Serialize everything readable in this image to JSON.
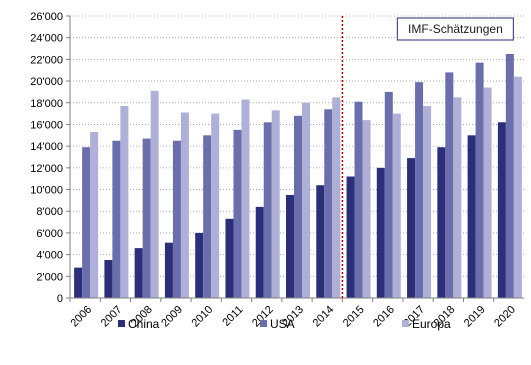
{
  "chart_data": {
    "type": "bar",
    "categories": [
      "2006",
      "2007",
      "2008",
      "2009",
      "2010",
      "2011",
      "2012",
      "2013",
      "2014",
      "2015",
      "2016",
      "2017",
      "2018",
      "2019",
      "2020"
    ],
    "series": [
      {
        "name": "China",
        "color": "#2b2f7a",
        "values": [
          2800,
          3500,
          4600,
          5100,
          6000,
          7300,
          8400,
          9500,
          10400,
          11200,
          12000,
          12900,
          13900,
          15000,
          16200
        ]
      },
      {
        "name": "USA",
        "color": "#6a6ead",
        "values": [
          13900,
          14500,
          14700,
          14500,
          15000,
          15500,
          16200,
          16800,
          17400,
          18100,
          19000,
          19900,
          20800,
          21700,
          22500
        ]
      },
      {
        "name": "Europa",
        "color": "#aeb0d8",
        "values": [
          15300,
          17700,
          19100,
          17100,
          17000,
          18300,
          17300,
          18000,
          18500,
          16400,
          17000,
          17700,
          18500,
          19400,
          20400
        ]
      }
    ],
    "y_tick_labels": [
      "0",
      "2'000",
      "4'000",
      "6'000",
      "8'000",
      "10'000",
      "12'000",
      "14'000",
      "16'000",
      "18'000",
      "20'000",
      "22'000",
      "24'000",
      "26'000"
    ],
    "ylim": [
      0,
      26000
    ],
    "grid": "horizontal dotted",
    "legend_position": "bottom",
    "annotation": {
      "label": "IMF-Schätzungen",
      "from_category": "2015"
    },
    "divider_color": "#c00000"
  }
}
